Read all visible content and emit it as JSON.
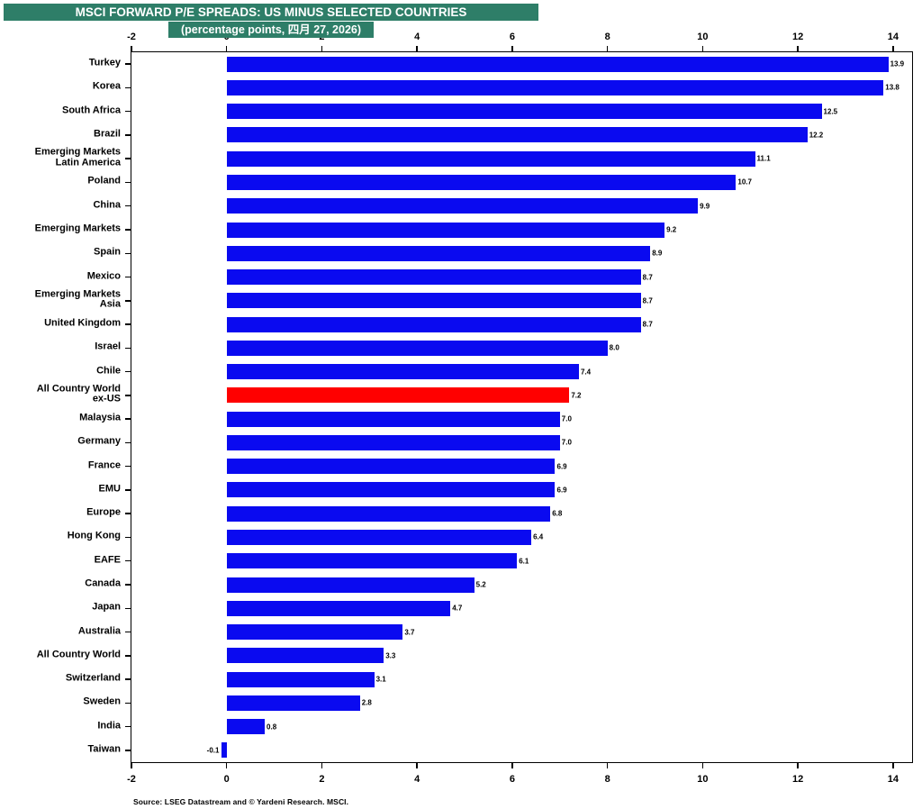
{
  "colors": {
    "title_bg": "#2e7e68",
    "bar": "#0a0af0",
    "highlight": "#ff0000",
    "axis": "#000000",
    "background": "#ffffff"
  },
  "source_note": "Source: LSEG Datastream and © Yardeni Research. MSCI.",
  "chart_data": {
    "type": "bar",
    "orientation": "horizontal",
    "title": "MSCI FORWARD P/E SPREADS: US MINUS SELECTED COUNTRIES",
    "subtitle": "(percentage points, 四月 27, 2026)",
    "xlabel": "",
    "ylabel": "",
    "xlim": [
      -2,
      14.4
    ],
    "xticks": [
      -2,
      0,
      2,
      4,
      6,
      8,
      10,
      12,
      14
    ],
    "grid": false,
    "legend_position": "none",
    "value_labels": true,
    "categories": [
      "Turkey",
      "Korea",
      "South Africa",
      "Brazil",
      "Emerging Markets\nLatin America",
      "Poland",
      "China",
      "Emerging Markets",
      "Spain",
      "Mexico",
      "Emerging Markets\nAsia",
      "United Kingdom",
      "Israel",
      "Chile",
      "All Country World\nex-US",
      "Malaysia",
      "Germany",
      "France",
      "EMU",
      "Europe",
      "Hong Kong",
      "EAFE",
      "Canada",
      "Japan",
      "Australia",
      "All Country World",
      "Switzerland",
      "Sweden",
      "India",
      "Taiwan"
    ],
    "values": [
      13.9,
      13.8,
      12.5,
      12.2,
      11.1,
      10.7,
      9.9,
      9.2,
      8.9,
      8.7,
      8.7,
      8.7,
      8.0,
      7.4,
      7.2,
      7.0,
      7.0,
      6.9,
      6.9,
      6.8,
      6.4,
      6.1,
      5.2,
      4.7,
      3.7,
      3.3,
      3.1,
      2.8,
      0.8,
      -0.1
    ],
    "highlight_index": 14
  }
}
